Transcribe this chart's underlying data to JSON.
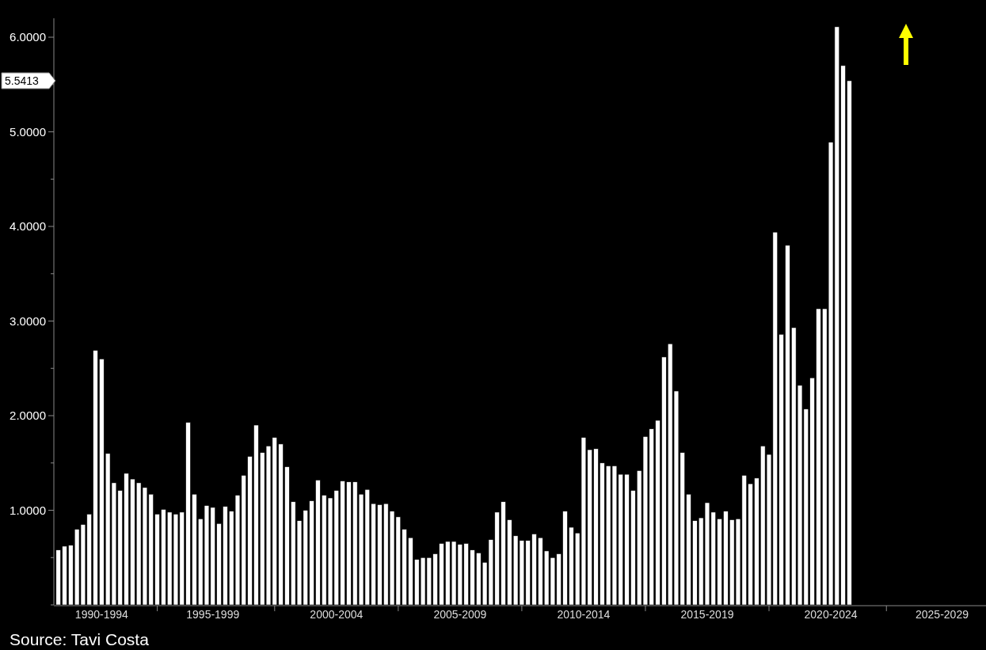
{
  "chart_data": {
    "type": "bar",
    "categories": [
      null,
      null,
      null,
      null,
      null,
      null,
      null,
      "1990-1994",
      null,
      null,
      null,
      null,
      null,
      null,
      null,
      null,
      null,
      null,
      null,
      null,
      null,
      null,
      null,
      null,
      null,
      "1995-1999",
      null,
      null,
      null,
      null,
      null,
      null,
      null,
      null,
      null,
      null,
      null,
      null,
      null,
      null,
      null,
      null,
      null,
      null,
      null,
      "2000-2004",
      null,
      null,
      null,
      null,
      null,
      null,
      null,
      null,
      null,
      null,
      null,
      null,
      null,
      null,
      null,
      null,
      null,
      null,
      null,
      "2005-2009",
      null,
      null,
      null,
      null,
      null,
      null,
      null,
      null,
      null,
      null,
      null,
      null,
      null,
      null,
      null,
      null,
      null,
      null,
      null,
      "2010-2014",
      null,
      null,
      null,
      null,
      null,
      null,
      null,
      null,
      null,
      null,
      null,
      null,
      null,
      null,
      null,
      null,
      null,
      null,
      null,
      "2015-2019",
      null,
      null,
      null,
      null,
      null,
      null,
      null,
      null,
      null,
      null,
      null,
      null,
      null,
      null,
      null,
      null,
      null,
      null,
      null,
      "2020-2024",
      null,
      null,
      null,
      null,
      null,
      null,
      null,
      null,
      null,
      null,
      null,
      null,
      null,
      null,
      null,
      null,
      null,
      "2025-2029",
      null,
      null,
      null,
      null,
      null,
      null
    ],
    "values": [
      0.58,
      0.62,
      0.63,
      0.8,
      0.85,
      0.96,
      2.69,
      2.6,
      1.6,
      1.29,
      1.21,
      1.39,
      1.33,
      1.29,
      1.24,
      1.17,
      0.96,
      1.01,
      0.98,
      0.96,
      0.98,
      1.93,
      1.17,
      0.91,
      1.05,
      1.03,
      0.86,
      1.04,
      0.99,
      1.16,
      1.37,
      1.57,
      1.9,
      1.61,
      1.68,
      1.77,
      1.7,
      1.46,
      1.09,
      0.89,
      1.0,
      1.1,
      1.32,
      1.16,
      1.13,
      1.21,
      1.31,
      1.3,
      1.3,
      1.17,
      1.22,
      1.07,
      1.06,
      1.07,
      0.99,
      0.93,
      0.8,
      0.71,
      0.48,
      0.5,
      0.5,
      0.54,
      0.65,
      0.67,
      0.67,
      0.64,
      0.65,
      0.58,
      0.55,
      0.45,
      0.69,
      0.98,
      1.09,
      0.9,
      0.73,
      0.68,
      0.68,
      0.75,
      0.71,
      0.57,
      0.5,
      0.54,
      0.99,
      0.82,
      0.76,
      1.77,
      1.64,
      1.65,
      1.5,
      1.47,
      1.47,
      1.38,
      1.38,
      1.21,
      1.42,
      1.78,
      1.86,
      1.95,
      2.62,
      2.76,
      2.26,
      1.61,
      1.17,
      0.89,
      0.92,
      1.08,
      0.98,
      0.91,
      0.99,
      0.9,
      0.91,
      1.37,
      1.28,
      1.34,
      1.68,
      1.59,
      3.94,
      2.86,
      3.8,
      2.93,
      2.32,
      2.07,
      2.4,
      3.13,
      3.13,
      4.89,
      6.11,
      5.7,
      5.54,
      null,
      null,
      null,
      null,
      null,
      null,
      null,
      null,
      null,
      null,
      null,
      null,
      null,
      null,
      null,
      null,
      null,
      null,
      null,
      null,
      null
    ],
    "color": "#ffffff",
    "ylim": [
      0,
      6.2
    ],
    "yticks": [
      {
        "value": 0,
        "label": null
      },
      {
        "value": 0.5,
        "label": null
      },
      {
        "value": 1,
        "label": "1.0000"
      },
      {
        "value": 1.5,
        "label": null
      },
      {
        "value": 2,
        "label": "2.0000"
      },
      {
        "value": 2.5,
        "label": null
      },
      {
        "value": 3,
        "label": "3.0000"
      },
      {
        "value": 3.5,
        "label": null
      },
      {
        "value": 4,
        "label": "4.0000"
      },
      {
        "value": 4.5,
        "label": null
      },
      {
        "value": 5,
        "label": "5.0000"
      },
      {
        "value": 5.5,
        "label": null
      },
      {
        "value": 6,
        "label": "6.0000"
      }
    ],
    "annotations": [
      "5.5413",
      "Source: Tavi Costa"
    ]
  }
}
